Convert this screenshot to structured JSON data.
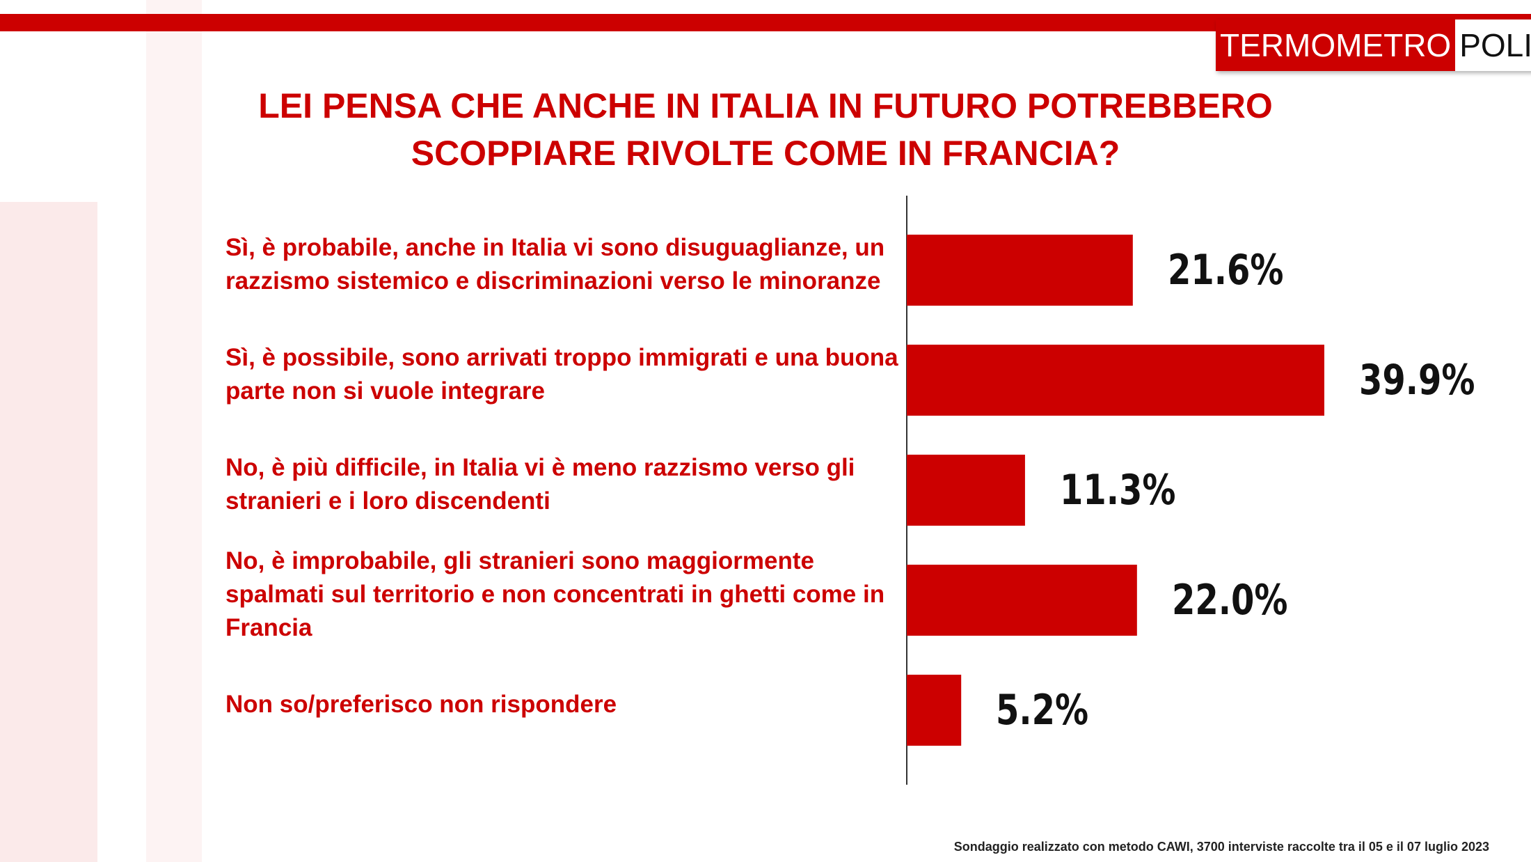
{
  "logo": {
    "part1": "TERMOMETRO",
    "part2": "POLITICO"
  },
  "chart_data": {
    "type": "barh",
    "title": "LEI PENSA CHE ANCHE IN ITALIA IN FUTURO POTREBBERO SCOPPIARE RIVOLTE COME IN FRANCIA?",
    "categories": [
      "Sì, è probabile, anche in Italia vi sono disuguaglianze, un razzismo sistemico e discriminazioni verso le minoranze",
      "Sì, è possibile, sono arrivati troppo immigrati e una buona parte non si vuole integrare",
      "No, è più difficile, in Italia vi è meno razzismo verso gli stranieri e i loro discendenti",
      "No, è improbabile, gli stranieri sono maggiormente spalmati sul territorio e non concentrati in ghetti come in Francia",
      "Non so/preferisco non rispondere"
    ],
    "values": [
      21.6,
      39.9,
      11.3,
      22.0,
      5.2
    ],
    "value_labels": [
      "21.6%",
      "39.9%",
      "11.3%",
      "22.0%",
      "5.2%"
    ],
    "color": "#cc0000",
    "note": "Sondaggio realizzato con metodo CAWI, 3700 interviste raccolte tra il 05 e il 07 luglio 2023"
  }
}
